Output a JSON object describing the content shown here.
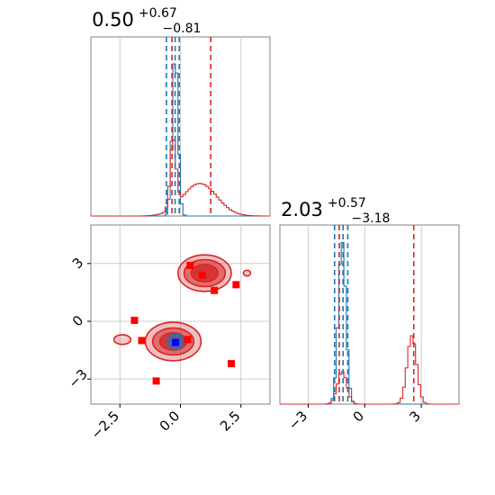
{
  "colors": {
    "model_a": "#1f77b4",
    "model_b": "#d62728",
    "scatter_blue": "#0000ff",
    "scatter_red": "#ff0000",
    "grid": "#cccccc",
    "axis": "#808080"
  },
  "chart_data": [
    {
      "type": "histogram",
      "panel": "top-left",
      "title": {
        "value": "0.50",
        "upper": "+0.67",
        "lower": "−0.81"
      },
      "xlim": [
        -3.7,
        3.7
      ],
      "xticks": [
        -2.5,
        0.0,
        2.5
      ],
      "grid": true,
      "series": [
        {
          "color": "#1f77b4",
          "peak": -0.22,
          "width": 0.12,
          "height": 1.0,
          "quantile_lines": [
            -0.58,
            -0.22,
            -0.05
          ]
        },
        {
          "color": "#d62728",
          "components": [
            {
              "center": 0.8,
              "width": 0.7,
              "height": 0.2
            },
            {
              "center": -0.3,
              "width": 0.12,
              "height": 0.42
            }
          ],
          "quantile_lines": [
            -0.35,
            1.25
          ]
        }
      ]
    },
    {
      "type": "histogram",
      "panel": "bottom-right",
      "title": {
        "value": "2.03",
        "upper": "+0.57",
        "lower": "−3.18"
      },
      "xlim": [
        -4.5,
        5.0
      ],
      "xticks": [
        -3,
        0,
        3
      ],
      "xticklabels": [
        "−3",
        "0",
        "3"
      ],
      "grid": true,
      "series": [
        {
          "color": "#1f77b4",
          "peak": -1.2,
          "width": 0.2,
          "height": 1.0,
          "quantile_lines": [
            -1.6,
            -1.15,
            -0.9
          ]
        },
        {
          "color": "#d62728",
          "components": [
            {
              "center": 2.5,
              "width": 0.25,
              "height": 0.42
            },
            {
              "center": -1.2,
              "width": 0.25,
              "height": 0.2
            }
          ],
          "quantile_lines": [
            -1.35,
            2.6
          ]
        }
      ]
    },
    {
      "type": "contour-scatter",
      "panel": "bottom-left",
      "xlim": [
        -3.7,
        3.7
      ],
      "ylim": [
        -4.3,
        5.0
      ],
      "xticks": [
        -2.5,
        0.0,
        2.5
      ],
      "xticklabels": [
        "−2.5",
        "0.0",
        "2.5"
      ],
      "yticks": [
        -3,
        0,
        3
      ],
      "yticklabels": [
        "−3",
        "0",
        "3"
      ],
      "grid": true,
      "red_squares": [
        [
          0.4,
          2.9
        ],
        [
          0.9,
          2.4
        ],
        [
          1.4,
          1.6
        ],
        [
          2.3,
          1.9
        ],
        [
          -1.9,
          0.05
        ],
        [
          -1.6,
          -1.0
        ],
        [
          0.3,
          -0.95
        ],
        [
          2.1,
          -2.2
        ],
        [
          -1.0,
          -3.1
        ]
      ],
      "blue_squares": [
        [
          -0.2,
          -1.1
        ]
      ],
      "red_blobs": [
        {
          "cx": 1.0,
          "cy": 2.5,
          "rx": [
            1.1,
            0.85,
            0.55
          ],
          "ry": [
            0.95,
            0.7,
            0.45
          ]
        },
        {
          "cx": -0.3,
          "cy": -1.05,
          "rx": [
            1.15,
            0.85,
            0.55
          ],
          "ry": [
            1.0,
            0.7,
            0.45
          ]
        },
        {
          "cx": -2.4,
          "cy": -0.95,
          "rx": [
            0.35
          ],
          "ry": [
            0.25
          ]
        },
        {
          "cx": 2.75,
          "cy": 2.5,
          "rx": [
            0.15
          ],
          "ry": [
            0.15
          ]
        }
      ],
      "blue_blobs": [
        {
          "cx": -0.2,
          "cy": -1.05,
          "rx": [
            0.35,
            0.2
          ],
          "ry": [
            0.4,
            0.25
          ]
        }
      ]
    }
  ]
}
